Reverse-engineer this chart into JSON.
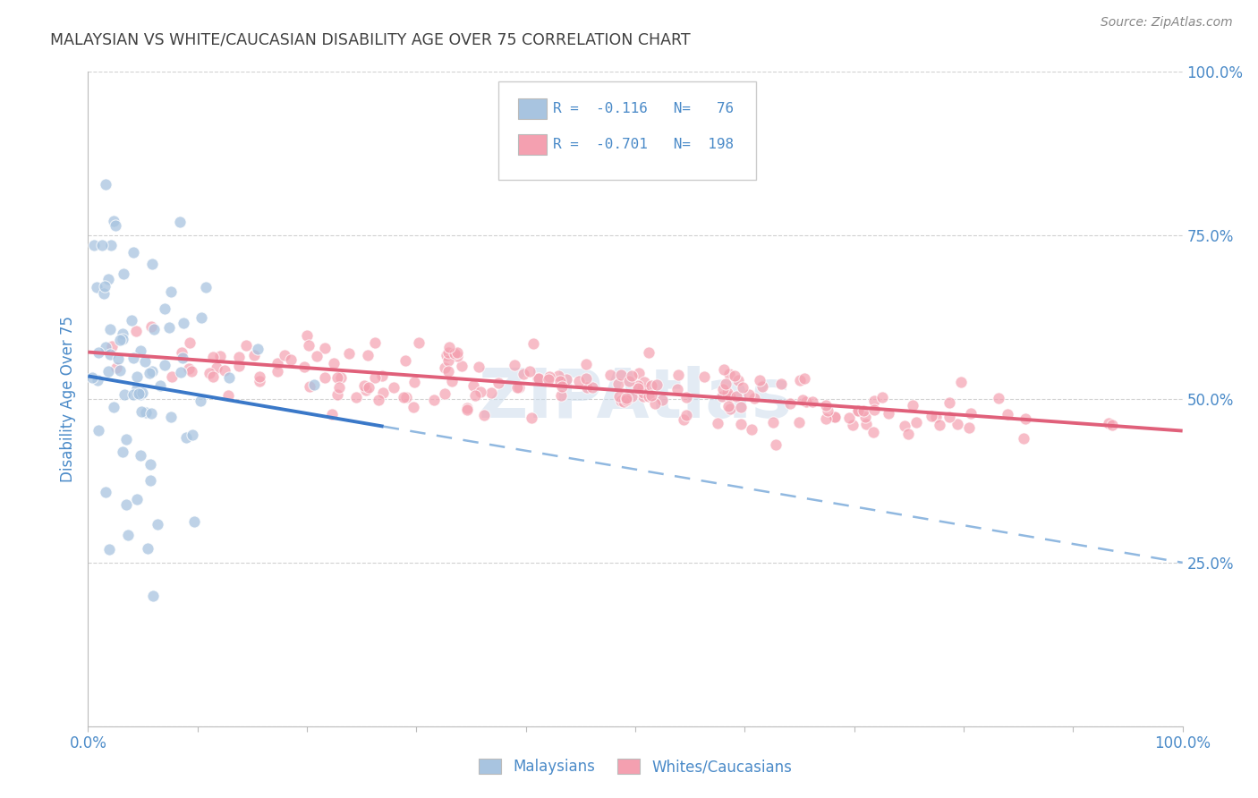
{
  "title": "MALAYSIAN VS WHITE/CAUCASIAN DISABILITY AGE OVER 75 CORRELATION CHART",
  "source": "Source: ZipAtlas.com",
  "ylabel": "Disability Age Over 75",
  "malaysian_R": -0.116,
  "malaysian_N": 76,
  "caucasian_R": -0.701,
  "caucasian_N": 198,
  "malaysian_color": "#a8c4e0",
  "caucasian_color": "#f4a0b0",
  "malaysian_line_color": "#3a78c8",
  "caucasian_line_color": "#e0607a",
  "trend_dash_color": "#90b8e0",
  "background_color": "#ffffff",
  "grid_color": "#cccccc",
  "title_color": "#404040",
  "source_color": "#888888",
  "axis_label_color": "#4a8ac8",
  "legend_text_color": "#4a8ac8",
  "watermark_color": "#ccdcec",
  "seed": 42,
  "xlim": [
    0,
    1
  ],
  "ylim": [
    0,
    1
  ],
  "ytick_right_vals": [
    0.25,
    0.5,
    0.75,
    1.0
  ],
  "ytick_right_labels": [
    "25.0%",
    "50.0%",
    "75.0%",
    "100.0%"
  ]
}
